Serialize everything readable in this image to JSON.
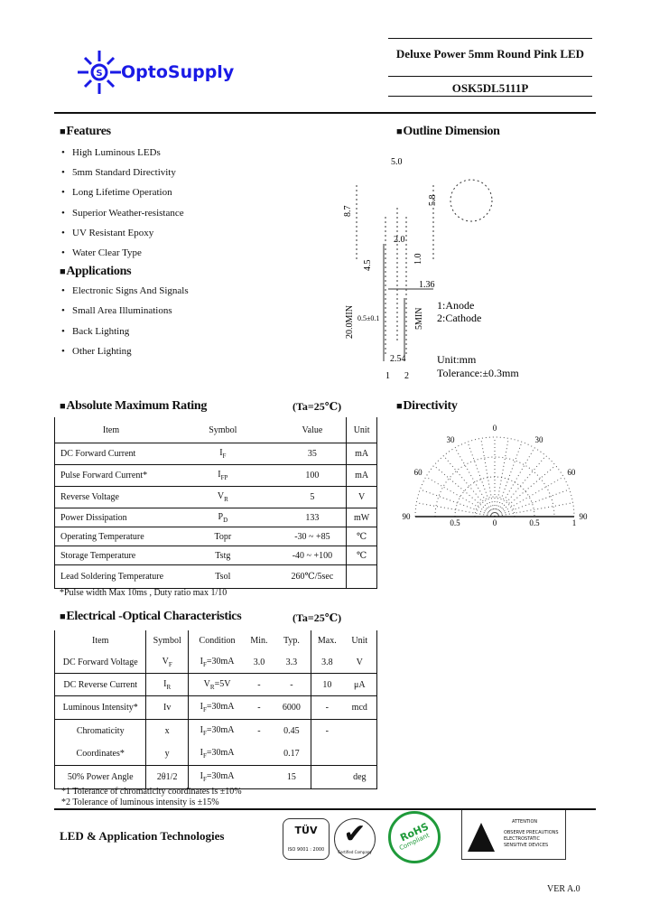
{
  "header": {
    "brand": "OptoSupply",
    "title": "Deluxe Power 5mm Round Pink LED",
    "part_number": "OSK5DL5111P"
  },
  "features": {
    "heading": "Features",
    "items": [
      "High Luminous LEDs",
      "5mm Standard Directivity",
      "Long Lifetime Operation",
      "Superior Weather-resistance",
      "UV Resistant Epoxy",
      "Water Clear Type"
    ]
  },
  "applications": {
    "heading": "Applications",
    "items": [
      "Electronic Signs And Signals",
      "Small Area Illuminations",
      "Back Lighting",
      "Other Lighting"
    ]
  },
  "outline": {
    "heading": "Outline Dimension",
    "dims": [
      "5.0",
      "8.7",
      "5.8",
      "1.0",
      "4.5",
      "2.0",
      "1.36",
      "20.0MIN",
      "0.5±0.1",
      "5MIN",
      "2.54",
      "1",
      "2"
    ],
    "pin_labels": [
      "1:Anode",
      "2:Cathode"
    ],
    "unit": "Unit:mm",
    "tolerance": "Tolerance:±0.3mm"
  },
  "abs_max": {
    "heading": "Absolute Maximum Rating",
    "condition": "(Ta=25℃)",
    "columns": [
      "Item",
      "Symbol",
      "Value",
      "Unit"
    ],
    "rows": [
      {
        "item": "DC Forward Current",
        "sym": "I",
        "sub": "F",
        "value": "35",
        "unit": "mA"
      },
      {
        "item": "Pulse Forward Current*",
        "sym": "I",
        "sub": "FP",
        "value": "100",
        "unit": "mA"
      },
      {
        "item": "Reverse Voltage",
        "sym": "V",
        "sub": "R",
        "value": "5",
        "unit": "V"
      },
      {
        "item": "Power Dissipation",
        "sym": "P",
        "sub": "D",
        "value": "133",
        "unit": "mW"
      },
      {
        "item": "Operating Temperature",
        "sym": "Topr",
        "sub": "",
        "value": "-30 ~ +85",
        "unit": "℃"
      },
      {
        "item": "Storage Temperature",
        "sym": "Tstg",
        "sub": "",
        "value": "-40 ~ +100",
        "unit": "℃"
      },
      {
        "item": "Lead Soldering Temperature",
        "sym": "Tsol",
        "sub": "",
        "value": "260℃/5sec",
        "unit": ""
      }
    ],
    "note": "*Pulse width Max 10ms , Duty ratio max 1/10"
  },
  "directivity": {
    "heading": "Directivity",
    "angle_labels": [
      "0",
      "30",
      "60",
      "90",
      "60",
      "30",
      "90"
    ],
    "axis_labels": [
      "0.5",
      "0",
      "0.5",
      "1"
    ]
  },
  "electro_optical": {
    "heading": "Electrical -Optical Characteristics",
    "condition": "(Ta=25℃)",
    "columns": [
      "Item",
      "Symbol",
      "Condition",
      "Min.",
      "Typ.",
      "Max.",
      "Unit"
    ],
    "rows": [
      {
        "item": "DC Forward Voltage",
        "sym": "V",
        "sub": "F",
        "cond": "I",
        "csub": "F",
        "cval": "=30mA",
        "min": "3.0",
        "typ": "3.3",
        "max": "3.8",
        "unit": "V"
      },
      {
        "item": "DC Reverse Current",
        "sym": "I",
        "sub": "R",
        "cond": "V",
        "csub": "R",
        "cval": "=5V",
        "min": "-",
        "typ": "-",
        "max": "10",
        "unit": "μA"
      },
      {
        "item": "Luminous Intensity*",
        "sym": "Iv",
        "sub": "",
        "cond": "I",
        "csub": "F",
        "cval": "=30mA",
        "min": "-",
        "typ": "6000",
        "max": "-",
        "unit": "mcd"
      },
      {
        "item": "Chromaticity",
        "sym": "x",
        "sub": "",
        "cond": "I",
        "csub": "F",
        "cval": "=30mA",
        "min": "-",
        "typ": "0.45",
        "max": "-",
        "unit": ""
      },
      {
        "item": "Coordinates*",
        "sym": "y",
        "sub": "",
        "cond": "I",
        "csub": "F",
        "cval": "=30mA",
        "min": "",
        "typ": "0.17",
        "max": "",
        "unit": ""
      },
      {
        "item": "50% Power Angle",
        "sym": "2θ1/2",
        "sub": "",
        "cond": "I",
        "csub": "F",
        "cval": "=30mA",
        "min": "",
        "typ": "15",
        "max": "",
        "unit": "deg"
      }
    ],
    "notes": [
      "*1 Tolerance of chromaticity coordinates is ±10%",
      "*2 Tolerance of luminous intensity is ±15%"
    ]
  },
  "footer": {
    "company": "LED & Application Technologies",
    "cert_tuv": "TÜV",
    "cert_tuv_sub": "ISO 9001 : 2000",
    "cert_check": "Certified Company",
    "cert_rohs": "RoHS",
    "cert_rohs_sub": "Compliant",
    "esd": {
      "title": "ATTENTION",
      "lines": [
        "OBSERVE PRECAUTIONS",
        "ELECTROSTATIC",
        "SENSITIVE DEVICES"
      ]
    },
    "version": "VER A.0"
  },
  "colors": {
    "brand_blue": "#1a1ae6",
    "rohs_green": "#1f9a3a"
  }
}
